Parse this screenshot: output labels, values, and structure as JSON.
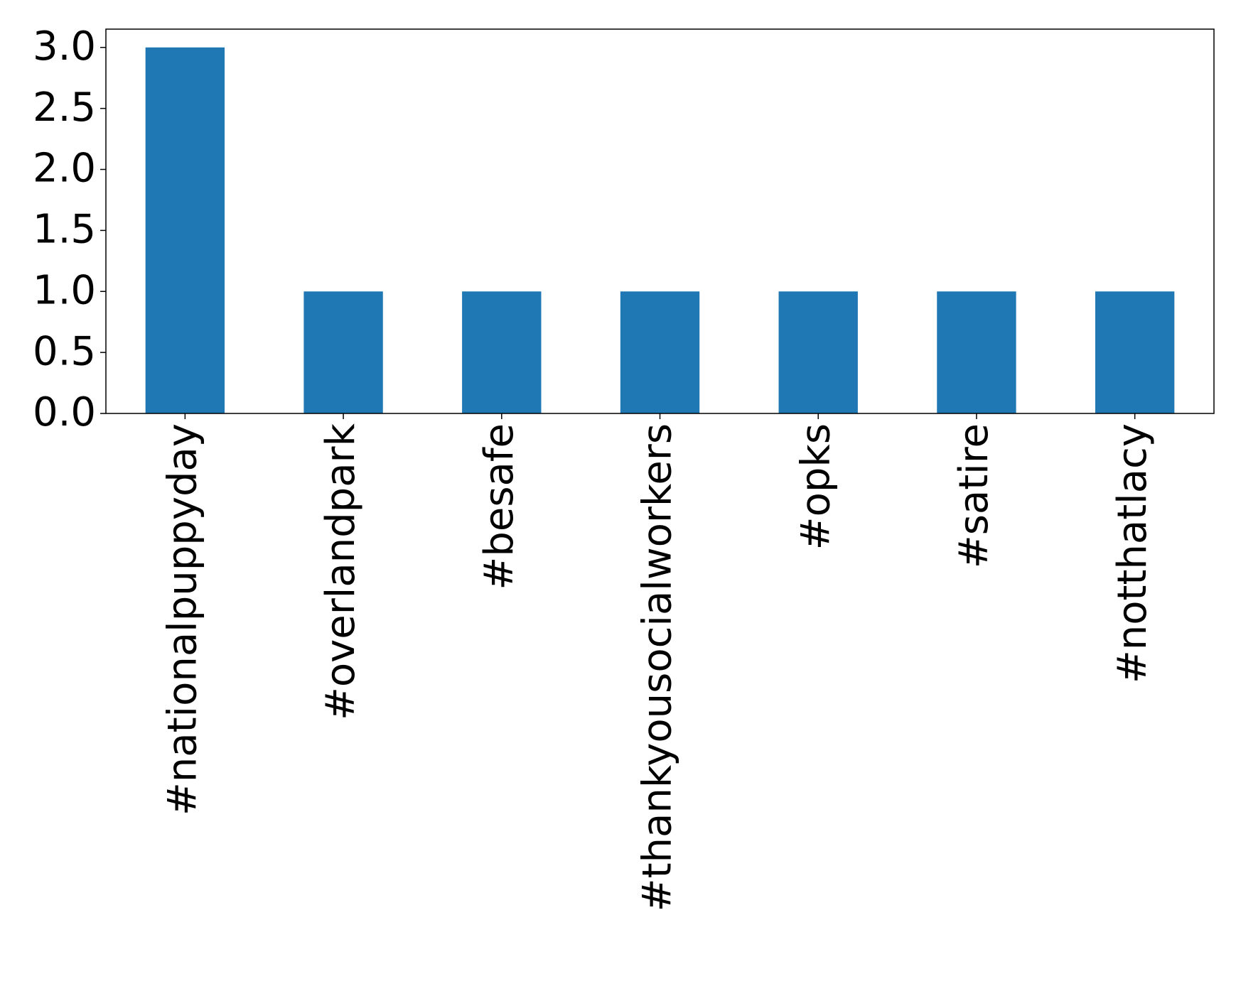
{
  "chart_data": {
    "type": "bar",
    "categories": [
      "#nationalpuppyday",
      "#overlandpark",
      "#besafe",
      "#thankyousocialworkers",
      "#opks",
      "#satire",
      "#notthatlacy"
    ],
    "values": [
      3,
      1,
      1,
      1,
      1,
      1,
      1
    ],
    "color": "#1f77b4",
    "ylim": [
      0,
      3.15
    ],
    "yticks": [
      {
        "value": 0,
        "label": "0.0"
      },
      0.5,
      {
        "value": 1,
        "label": "1.0"
      },
      1.5,
      {
        "value": 2,
        "label": "2.0"
      },
      2.5,
      {
        "value": 3,
        "label": "3.0"
      }
    ],
    "grid": false
  }
}
